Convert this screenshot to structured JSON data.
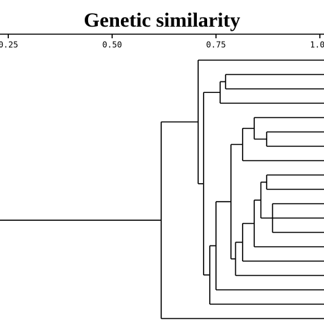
{
  "chart_data": {
    "type": "dendrogram",
    "title": "Genetic similarity",
    "xlim": [
      0.23,
      1.01
    ],
    "xticks": [
      0.25,
      {
        "value": 0.5,
        "label": "0.50"
      },
      0.75,
      {
        "value": 1,
        "label": "1.00"
      }
    ],
    "tree": {
      "value": 0.618,
      "children": [
        {
          "value": 0.707,
          "children": [
            null,
            {
              "value": 0.72,
              "children": [
                {
                  "value": 0.76,
                  "children": [
                    {
                      "value": 0.773,
                      "children": [
                        null,
                        null
                      ]
                    },
                    null
                  ]
                },
                {
                  "value": 0.735,
                  "children": [
                    {
                      "value": 0.75,
                      "children": [
                        {
                          "value": 0.786,
                          "children": [
                            {
                              "value": 0.814,
                              "children": [
                                {
                                  "value": 0.842,
                                  "children": [
                                    null,
                                    {
                                      "value": 0.872,
                                      "children": [
                                        null,
                                        null
                                      ]
                                    }
                                  ]
                                },
                                null
                              ]
                            },
                            {
                              "value": 0.797,
                              "children": [
                                {
                                  "value": 0.814,
                                  "children": [
                                    {
                                      "value": 0.842,
                                      "children": [
                                        {
                                          "value": 0.858,
                                          "children": [
                                            {
                                              "value": 0.872,
                                              "children": [
                                                null,
                                                null
                                              ]
                                            },
                                            {
                                              "value": 0.886,
                                              "children": [
                                                null,
                                                null,
                                                null
                                              ]
                                            }
                                          ]
                                        },
                                        null
                                      ]
                                    },
                                    null
                                  ]
                                },
                                null
                              ]
                            }
                          ]
                        },
                        null
                      ]
                    },
                    null
                  ]
                }
              ]
            }
          ]
        },
        null
      ]
    }
  }
}
